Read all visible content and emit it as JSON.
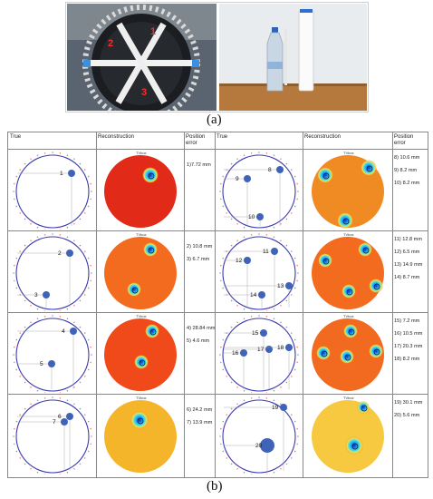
{
  "figure": {
    "caption_a": "(a)",
    "caption_b": "(b)"
  },
  "photo_a": {
    "sensor_labels": [
      "1",
      "2",
      "3"
    ]
  },
  "table": {
    "headers": [
      "True",
      "Reconstruction",
      "Position error",
      "True",
      "Reconstruction",
      "Position error"
    ],
    "recon_label": "TVbox",
    "rows": [
      {
        "left": {
          "points": [
            "1"
          ],
          "errors": [
            "1)7.72 mm"
          ]
        },
        "right": {
          "points": [
            "8",
            "9",
            "10"
          ],
          "errors": [
            "8) 10.6 mm",
            "9) 8.2 mm",
            "10) 8.2 mm"
          ]
        }
      },
      {
        "left": {
          "points": [
            "2",
            "3"
          ],
          "errors": [
            "2) 10.8 mm",
            "3) 6.7 mm"
          ]
        },
        "right": {
          "points": [
            "11",
            "12",
            "13",
            "14"
          ],
          "errors": [
            "11) 12.8 mm",
            "12) 6.5 mm",
            "13) 14.9 mm",
            "14) 8.7 mm"
          ]
        }
      },
      {
        "left": {
          "points": [
            "4",
            "5"
          ],
          "errors": [
            "4) 28.84 mm",
            "5) 4.6 mm"
          ]
        },
        "right": {
          "points": [
            "15",
            "16",
            "17",
            "18"
          ],
          "errors": [
            "15) 7.2 mm",
            "16) 10.5 mm",
            "17) 20.3 mm",
            "18) 8.2 mm"
          ]
        }
      },
      {
        "left": {
          "points": [
            "6",
            "7"
          ],
          "errors": [
            "6) 24.2 mm",
            "7) 13.9 mm"
          ]
        },
        "right": {
          "points": [
            "19",
            "20"
          ],
          "errors": [
            "19) 30.1 mm",
            "20) 5.6 mm"
          ]
        }
      }
    ]
  },
  "colors": {
    "circle": "#3a3ab0",
    "marker": "#3f63b8",
    "border": "#888888",
    "sensor_label": "#ff2b2b"
  }
}
